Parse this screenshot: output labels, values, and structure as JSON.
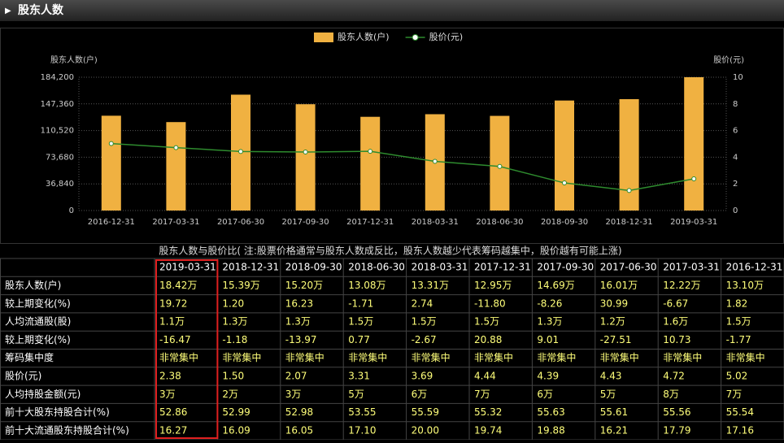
{
  "header": {
    "title": "股东人数"
  },
  "chart_data": {
    "type": "bar-line",
    "y_label": "股东人数(户)",
    "y2_label": "股价(元)",
    "categories": [
      "2016-12-31",
      "2017-03-31",
      "2017-06-30",
      "2017-09-30",
      "2017-12-31",
      "2018-03-31",
      "2018-06-30",
      "2018-09-30",
      "2018-12-31",
      "2019-03-31"
    ],
    "series": [
      {
        "name": "股东人数(户)",
        "color": "#f0b141",
        "kind": "bar",
        "values": [
          131000,
          122200,
          160100,
          146900,
          129500,
          133100,
          130800,
          152000,
          153900,
          184200
        ]
      },
      {
        "name": "股价(元)",
        "color": "#2e8b2e",
        "kind": "line",
        "axis": "y2",
        "values": [
          5.02,
          4.72,
          4.43,
          4.39,
          4.44,
          3.69,
          3.31,
          2.07,
          1.5,
          2.38
        ]
      }
    ],
    "ylim": [
      0,
      184200
    ],
    "yticks": [
      0,
      {
        "value": 36840,
        "label": "36,840"
      },
      {
        "value": 73680,
        "label": "73,680"
      },
      {
        "value": 110520,
        "label": "110,520"
      },
      {
        "value": 147360,
        "label": "147,360"
      },
      {
        "value": 184200,
        "label": "184,200"
      }
    ],
    "y2lim": [
      0,
      10
    ],
    "y2ticks": [
      0,
      2,
      4,
      6,
      8,
      10
    ],
    "grid": true
  },
  "table": {
    "caption": "股东人数与股价比( 注:股票价格通常与股东人数成反比，股东人数越少代表筹码越集中，股价越有可能上涨)",
    "columns": [
      "2019-03-31",
      "2018-12-31",
      "2018-09-30",
      "2018-06-30",
      "2018-03-31",
      "2017-12-31",
      "2017-09-30",
      "2017-06-30",
      "2017-03-31",
      "2016-12-31"
    ],
    "rows": [
      [
        "股东人数(户)",
        "18.42万",
        "15.39万",
        "15.20万",
        "13.08万",
        "13.31万",
        "12.95万",
        "14.69万",
        "16.01万",
        "12.22万",
        "13.10万"
      ],
      [
        "较上期变化(%)",
        "19.72",
        "1.20",
        "16.23",
        "-1.71",
        "2.74",
        "-11.80",
        "-8.26",
        "30.99",
        "-6.67",
        "1.82"
      ],
      [
        "人均流通股(股)",
        "1.1万",
        "1.3万",
        "1.3万",
        "1.5万",
        "1.5万",
        "1.5万",
        "1.3万",
        "1.2万",
        "1.6万",
        "1.5万"
      ],
      [
        "较上期变化(%)",
        "-16.47",
        "-1.18",
        "-13.97",
        "0.77",
        "-2.67",
        "20.88",
        "9.01",
        "-27.51",
        "10.73",
        "-1.77"
      ],
      [
        "筹码集中度",
        "非常集中",
        "非常集中",
        "非常集中",
        "非常集中",
        "非常集中",
        "非常集中",
        "非常集中",
        "非常集中",
        "非常集中",
        "非常集中"
      ],
      [
        "股价(元)",
        "2.38",
        "1.50",
        "2.07",
        "3.31",
        "3.69",
        "4.44",
        "4.39",
        "4.43",
        "4.72",
        "5.02"
      ],
      [
        "人均持股金额(元)",
        "3万",
        "2万",
        "3万",
        "5万",
        "6万",
        "7万",
        "6万",
        "5万",
        "8万",
        "7万"
      ],
      [
        "前十大股东持股合计(%)",
        "52.86",
        "52.99",
        "52.98",
        "53.55",
        "55.59",
        "55.32",
        "55.63",
        "55.61",
        "55.56",
        "55.54"
      ],
      [
        "前十大流通股东持股合计(%)",
        "16.27",
        "16.09",
        "16.05",
        "17.10",
        "20.00",
        "19.74",
        "19.88",
        "16.21",
        "17.79",
        "17.16"
      ]
    ]
  }
}
